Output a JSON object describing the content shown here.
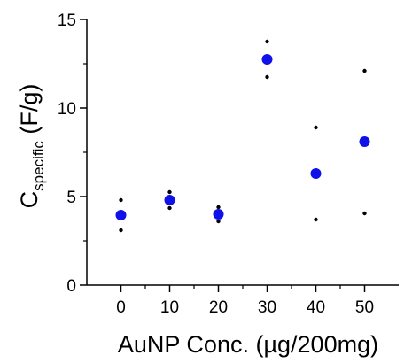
{
  "chart_data": {
    "type": "scatter",
    "title": "",
    "xlabel": "AuNP Conc. (µg/200mg)",
    "ylabel": {
      "base": "C",
      "subscript": "specific",
      "rest": " (F/g)"
    },
    "xlim": [
      -7,
      57
    ],
    "ylim": [
      0,
      15
    ],
    "xticks": [
      0,
      10,
      20,
      30,
      40,
      50
    ],
    "yticks": [
      0,
      5,
      10,
      15
    ],
    "grid": false,
    "legend": "none",
    "colors": {
      "mean": "#1010e8",
      "range": "#000000"
    },
    "series": [
      {
        "values": [
          {
            "x": 0,
            "y": 3.95,
            "upper": 4.8,
            "lower": 3.1
          },
          {
            "x": 10,
            "y": 4.8,
            "upper": 5.25,
            "lower": 4.35
          },
          {
            "x": 20,
            "y": 4.0,
            "upper": 4.4,
            "lower": 3.6
          },
          {
            "x": 30,
            "y": 12.75,
            "upper": 13.75,
            "lower": 11.75
          },
          {
            "x": 40,
            "y": 6.3,
            "upper": 8.9,
            "lower": 3.7
          },
          {
            "x": 50,
            "y": 8.1,
            "upper": 12.1,
            "lower": 4.05
          }
        ]
      }
    ]
  }
}
